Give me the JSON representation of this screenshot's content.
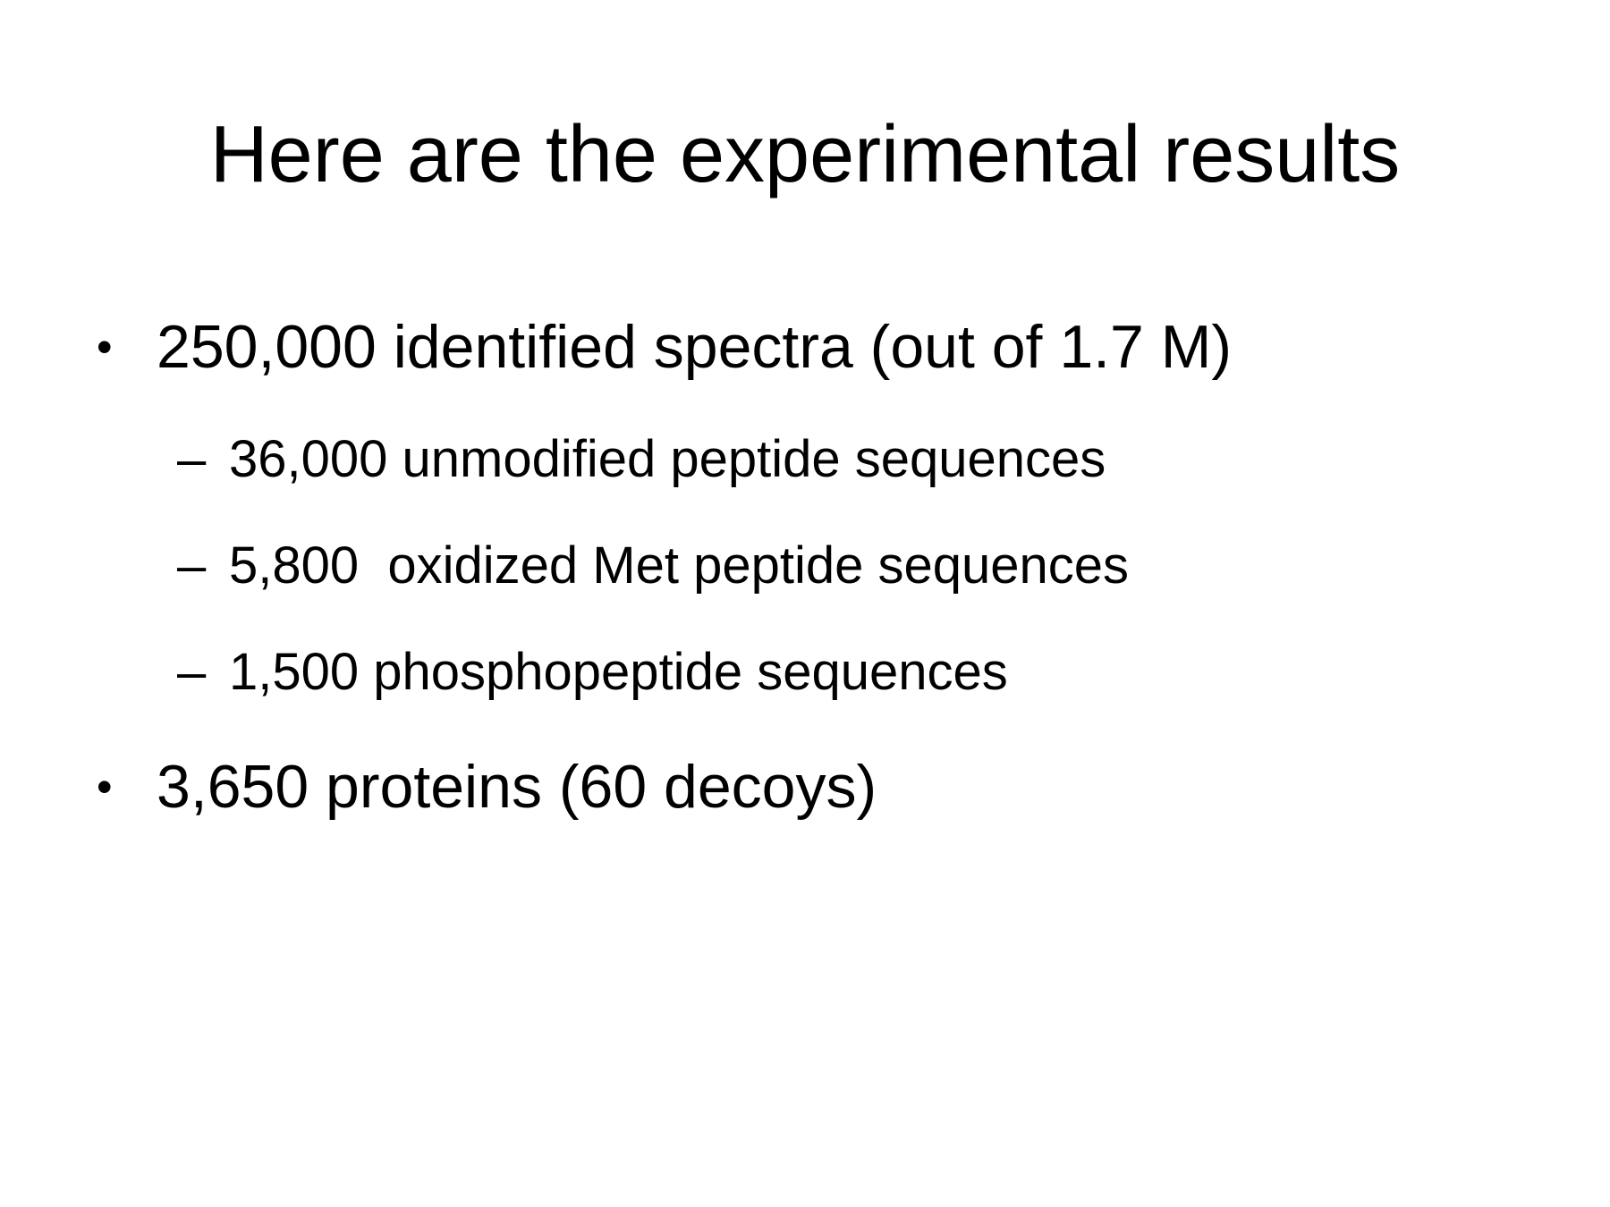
{
  "slide": {
    "title": "Here are the experimental results",
    "bullets": [
      {
        "marker": "•",
        "text": "250,000 identified spectra (out of 1.7 M)",
        "subitems": [
          {
            "marker": "–",
            "text": "36,000 unmodified peptide sequences"
          },
          {
            "marker": "–",
            "text": "5,800  oxidized Met peptide sequences"
          },
          {
            "marker": "–",
            "text": "1,500 phosphopeptide sequences"
          }
        ]
      },
      {
        "marker": "•",
        "text": "3,650 proteins (60 decoys)",
        "subitems": []
      }
    ]
  }
}
